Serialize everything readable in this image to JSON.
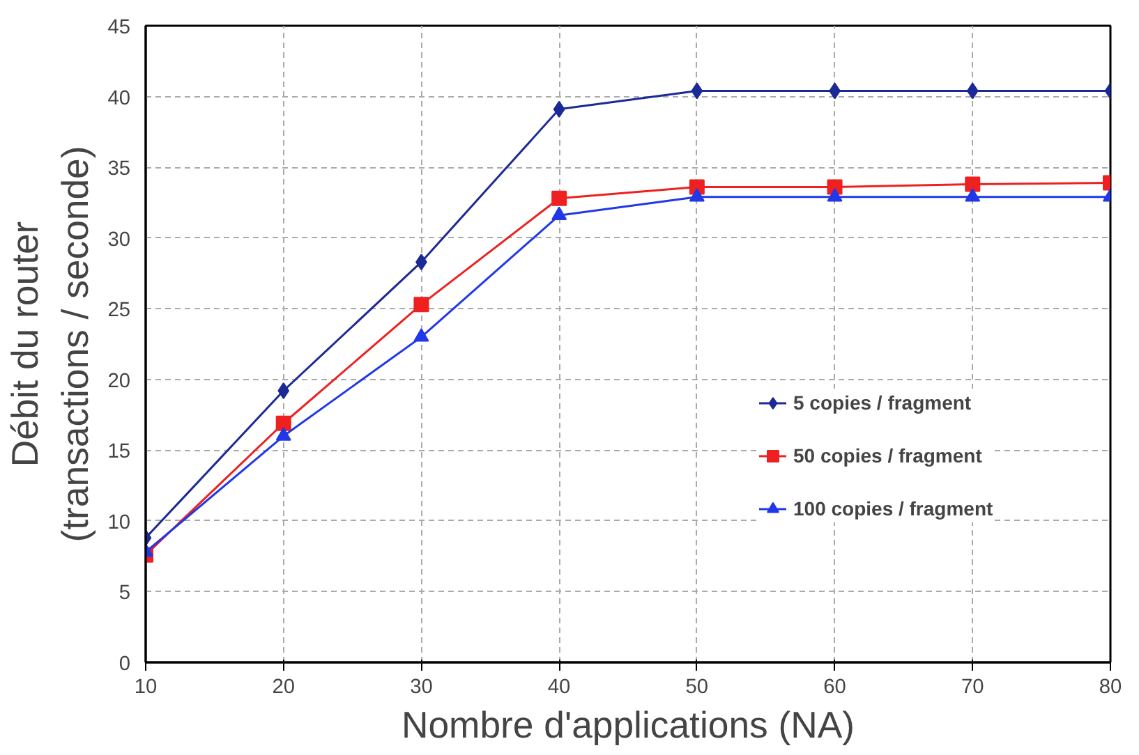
{
  "chart_data": {
    "type": "line",
    "xlabel": "Nombre d'applications (NA)",
    "ylabel": "Débit du router\n(transactions / seconde)",
    "x": [
      10,
      20,
      30,
      40,
      50,
      60,
      70,
      80
    ],
    "series": [
      {
        "name": "5 copies / fragment",
        "color": "#1b2a96",
        "marker": "diamond",
        "values": [
          8.8,
          19.2,
          28.3,
          39.1,
          40.4,
          40.4,
          40.4,
          40.4
        ]
      },
      {
        "name": "50 copies / fragment",
        "color": "#ee2020",
        "marker": "square",
        "values": [
          7.6,
          16.9,
          25.3,
          32.8,
          33.6,
          33.6,
          33.8,
          33.9
        ]
      },
      {
        "name": "100 copies / fragment",
        "color": "#2038e8",
        "marker": "triangle",
        "values": [
          7.8,
          16.0,
          23.0,
          31.6,
          32.9,
          32.9,
          32.9,
          32.9
        ]
      }
    ],
    "xlim": [
      10,
      80
    ],
    "ylim": [
      0,
      45
    ],
    "xticks": [
      10,
      20,
      30,
      40,
      50,
      60,
      70,
      80
    ],
    "yticks": [
      0,
      5,
      10,
      15,
      20,
      25,
      30,
      35,
      40,
      45
    ],
    "grid": true,
    "legend": "right",
    "line_style": "solid"
  }
}
